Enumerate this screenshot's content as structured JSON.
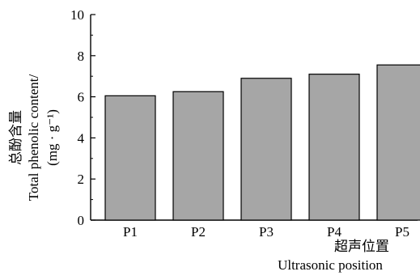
{
  "chart_data": {
    "type": "bar",
    "categories": [
      "P1",
      "P2",
      "P3",
      "P4",
      "P5"
    ],
    "values": [
      6.05,
      6.25,
      6.9,
      7.1,
      7.55
    ],
    "ylim": [
      0,
      10
    ],
    "yticks": [
      0,
      2,
      4,
      6,
      8,
      10
    ],
    "ylabel_lines": [
      "总酚含量",
      "Total phenolic content/",
      "(mg · g⁻¹)"
    ],
    "xlabel_lines": [
      "超声位置",
      "Ultrasonic position"
    ],
    "bar_color": "#a6a6a6",
    "grid": false,
    "legend": "none"
  }
}
